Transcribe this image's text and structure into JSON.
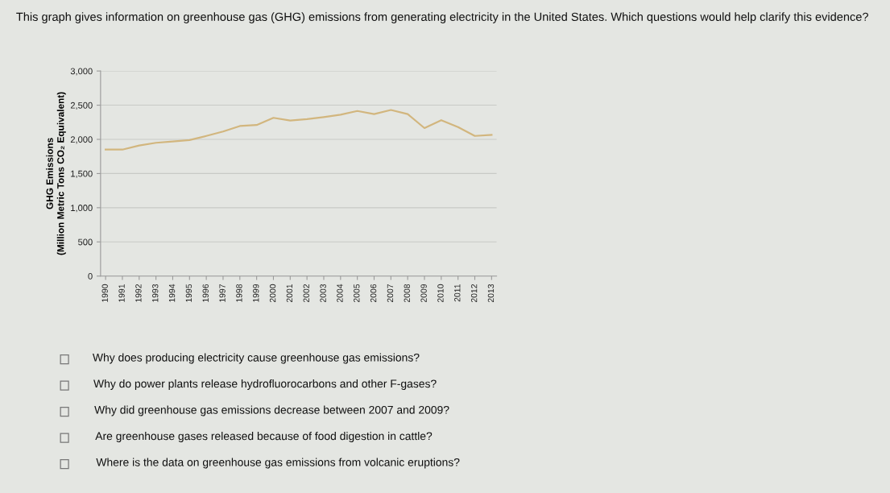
{
  "chart_data": {
    "type": "line",
    "title": "This graph gives information on greenhouse gas (GHG) emissions from generating electricity in the United States. Which questions would help clarify this evidence?",
    "ylabel": "GHG Emissions\n(Million Metric Tons CO₂ Equivalent)",
    "categories": [
      "1990",
      "1991",
      "1992",
      "1993",
      "1994",
      "1995",
      "1996",
      "1997",
      "1998",
      "1999",
      "2000",
      "2001",
      "2002",
      "2003",
      "2004",
      "2005",
      "2006",
      "2007",
      "2008",
      "2009",
      "2010",
      "2011",
      "2012",
      "2013"
    ],
    "series": [
      {
        "color": "#d2b67e",
        "values": [
          1850,
          1850,
          1910,
          1950,
          1970,
          1990,
          2050,
          2115,
          2195,
          2210,
          2315,
          2275,
          2295,
          2325,
          2360,
          2415,
          2370,
          2430,
          2370,
          2165,
          2280,
          2180,
          2050,
          2065
        ]
      }
    ],
    "ylim": [
      0,
      3000
    ],
    "yticks": [
      0,
      {
        "value": 500,
        "label": "500"
      },
      {
        "value": 1000,
        "label": "1,000"
      },
      {
        "value": 1500,
        "label": "1,500"
      },
      {
        "value": 2000,
        "label": "2,000"
      },
      {
        "value": 2500,
        "label": "2,500"
      },
      {
        "value": 3000,
        "label": "3,000"
      }
    ],
    "grid": "y",
    "annotations": [
      "Why does producing electricity cause greenhouse gas emissions?",
      "Why do power plants release hydrofluorocarbons and other F-gases?",
      "Why did greenhouse gas emissions decrease between 2007 and 2009?",
      "Are greenhouse gases released because of food digestion in cattle?",
      "Where is the data on greenhouse gas emissions from volcanic eruptions?"
    ]
  }
}
